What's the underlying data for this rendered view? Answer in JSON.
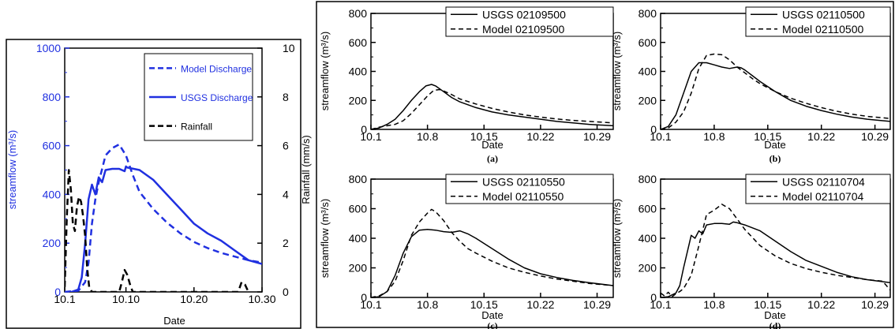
{
  "chart_data": [
    {
      "type": "line",
      "xlabel": "Date",
      "ylabel": "streamflow (m³/s)",
      "y2label": "Rainfall (mm/s)",
      "x_tick_labels": [
        "10.1",
        "10.10",
        "10.20",
        "10.30"
      ],
      "x_ticks": [
        1,
        10,
        20,
        30
      ],
      "xlim": [
        1,
        30
      ],
      "ylim": [
        0,
        1000
      ],
      "y_tick_labels": [
        "0",
        "200",
        "400",
        "600",
        "800",
        "1000"
      ],
      "y2lim": [
        0,
        10
      ],
      "y2_tick_labels": [
        "0",
        "2",
        "4",
        "6",
        "8",
        "10"
      ],
      "legend_position": "top-right",
      "series": [
        {
          "name": "Model Discharge",
          "color": "#2030e0",
          "style": "dashed",
          "axis": "left",
          "x": [
            1,
            3,
            4,
            4.5,
            5,
            5.5,
            6,
            7,
            8,
            9,
            10,
            11,
            12,
            14,
            16,
            18,
            20,
            22,
            24,
            26,
            28,
            30
          ],
          "y": [
            0,
            5,
            40,
            120,
            280,
            380,
            450,
            560,
            590,
            605,
            560,
            480,
            410,
            340,
            285,
            240,
            205,
            180,
            160,
            145,
            130,
            120
          ]
        },
        {
          "name": "USGS Discharge",
          "color": "#2030e0",
          "style": "solid",
          "axis": "left",
          "x": [
            1,
            2,
            3,
            3.5,
            4,
            4.5,
            5,
            5.5,
            6,
            6.5,
            7,
            8,
            9,
            9.8,
            10,
            10.2,
            12,
            14,
            16,
            18,
            20,
            22,
            24,
            26,
            28,
            30
          ],
          "y": [
            0,
            0,
            10,
            60,
            200,
            380,
            440,
            400,
            470,
            450,
            500,
            505,
            505,
            495,
            515,
            510,
            500,
            460,
            400,
            340,
            280,
            240,
            210,
            170,
            130,
            115
          ]
        },
        {
          "name": "Rainfall",
          "color": "#000000",
          "style": "dashed",
          "axis": "right",
          "x": [
            1,
            1.3,
            1.6,
            1.9,
            2.2,
            2.5,
            2.8,
            3.1,
            3.4,
            3.7,
            4.0,
            4.3,
            4.6,
            5,
            9,
            9.4,
            9.8,
            10.2,
            10.6,
            11,
            26.5,
            27,
            27.5,
            28
          ],
          "y": [
            0.2,
            3.0,
            5.0,
            4.2,
            2.8,
            2.5,
            3.5,
            3.9,
            3.7,
            3.1,
            2.3,
            1.0,
            0.2,
            0,
            0,
            0.4,
            0.9,
            0.7,
            0.3,
            0,
            0,
            0.4,
            0.3,
            0
          ]
        }
      ]
    },
    {
      "type": "line",
      "caption": "(a)",
      "xlabel": "Date",
      "ylabel": "streamflow (m³/s)",
      "x_tick_labels": [
        "10.1",
        "10.8",
        "10.15",
        "10.22",
        "10.29"
      ],
      "x_ticks": [
        1,
        8,
        15,
        22,
        29
      ],
      "xlim": [
        1,
        31
      ],
      "ylim": [
        0,
        800
      ],
      "y_tick_labels": [
        "0",
        "200",
        "400",
        "600",
        "800"
      ],
      "legend_position": "top-right",
      "series": [
        {
          "name": "USGS 02109500",
          "style": "solid",
          "x": [
            1,
            2,
            3,
            4,
            5,
            6,
            7,
            7.8,
            8.5,
            9,
            10,
            11,
            12,
            14,
            16,
            18,
            20,
            22,
            24,
            26,
            28,
            31
          ],
          "y": [
            0,
            10,
            35,
            70,
            130,
            200,
            260,
            300,
            310,
            300,
            260,
            220,
            190,
            150,
            120,
            100,
            85,
            70,
            55,
            45,
            35,
            25
          ]
        },
        {
          "name": "Model 02109500",
          "style": "dashed",
          "x": [
            1,
            2,
            3,
            4,
            5,
            6,
            7,
            8,
            8.8,
            9.5,
            10,
            11,
            12,
            14,
            16,
            18,
            20,
            22,
            24,
            26,
            28,
            31
          ],
          "y": [
            0,
            15,
            25,
            35,
            60,
            110,
            170,
            230,
            270,
            275,
            265,
            240,
            210,
            175,
            145,
            120,
            100,
            85,
            72,
            62,
            55,
            45
          ]
        }
      ]
    },
    {
      "type": "line",
      "caption": "(b)",
      "xlabel": "Date",
      "ylabel": "streamflow (m³/s)",
      "x_tick_labels": [
        "10.1",
        "10.8",
        "10.15",
        "10.22",
        "10.29"
      ],
      "x_ticks": [
        1,
        8,
        15,
        22,
        29
      ],
      "xlim": [
        1,
        31
      ],
      "ylim": [
        0,
        800
      ],
      "y_tick_labels": [
        "0",
        "200",
        "400",
        "600",
        "800"
      ],
      "legend_position": "top-right",
      "series": [
        {
          "name": "USGS 02110500",
          "style": "solid",
          "x": [
            1,
            2,
            3,
            4,
            5,
            6,
            7,
            8,
            9,
            10,
            11,
            11.5,
            12,
            13,
            14,
            16,
            18,
            20,
            22,
            24,
            26,
            28,
            31
          ],
          "y": [
            0,
            20,
            100,
            250,
            400,
            460,
            460,
            445,
            430,
            420,
            430,
            425,
            410,
            370,
            330,
            260,
            200,
            160,
            130,
            105,
            85,
            70,
            55
          ]
        },
        {
          "name": "Model 02110500",
          "style": "dashed",
          "x": [
            1,
            2,
            3,
            4,
            5,
            6,
            7,
            8,
            9,
            10,
            11,
            12,
            13,
            14,
            16,
            18,
            20,
            22,
            24,
            26,
            28,
            31
          ],
          "y": [
            0,
            10,
            50,
            120,
            250,
            420,
            510,
            520,
            515,
            480,
            430,
            390,
            350,
            315,
            260,
            215,
            180,
            150,
            125,
            105,
            90,
            75
          ]
        }
      ]
    },
    {
      "type": "line",
      "caption": "(c)",
      "xlabel": "Date",
      "ylabel": "streamflow (m³/s)",
      "x_tick_labels": [
        "10.1",
        "10.8",
        "10.15",
        "10.22",
        "10.29"
      ],
      "x_ticks": [
        1,
        8,
        15,
        22,
        29
      ],
      "xlim": [
        1,
        31
      ],
      "ylim": [
        0,
        800
      ],
      "y_tick_labels": [
        "0",
        "200",
        "400",
        "600",
        "800"
      ],
      "legend_position": "top-right",
      "series": [
        {
          "name": "USGS 02110550",
          "style": "solid",
          "x": [
            1,
            2,
            3,
            4,
            5,
            6,
            7,
            8,
            9,
            10,
            11,
            12,
            13,
            14,
            16,
            18,
            20,
            22,
            24,
            26,
            28,
            31
          ],
          "y": [
            0,
            5,
            40,
            150,
            300,
            410,
            455,
            460,
            455,
            445,
            440,
            450,
            430,
            400,
            330,
            260,
            200,
            160,
            135,
            115,
            100,
            80
          ]
        },
        {
          "name": "Model 02110550",
          "style": "dashed",
          "x": [
            1,
            2,
            3,
            4,
            5,
            6,
            7,
            8,
            8.5,
            9,
            10,
            11,
            12,
            13,
            14,
            16,
            18,
            20,
            22,
            24,
            26,
            28,
            31
          ],
          "y": [
            0,
            10,
            40,
            110,
            250,
            420,
            510,
            570,
            595,
            580,
            520,
            440,
            380,
            330,
            300,
            245,
            200,
            170,
            145,
            125,
            110,
            95,
            80
          ]
        }
      ]
    },
    {
      "type": "line",
      "caption": "(d)",
      "xlabel": "Date",
      "ylabel": "streamflow (m³/s)",
      "x_tick_labels": [
        "10.1",
        "10.8",
        "10.15",
        "10.22",
        "10.29"
      ],
      "x_ticks": [
        1,
        8,
        15,
        22,
        29
      ],
      "xlim": [
        1,
        31
      ],
      "ylim": [
        0,
        800
      ],
      "y_tick_labels": [
        "0",
        "200",
        "400",
        "600",
        "800"
      ],
      "legend_position": "top-right",
      "series": [
        {
          "name": "USGS 02110704",
          "style": "solid",
          "x": [
            1,
            2,
            3,
            3.5,
            4,
            5,
            5.5,
            6,
            6.5,
            7,
            8,
            9,
            10,
            10.5,
            11,
            12,
            14,
            16,
            18,
            20,
            22,
            24,
            26,
            28,
            31
          ],
          "y": [
            0,
            5,
            30,
            80,
            200,
            420,
            400,
            450,
            430,
            490,
            500,
            500,
            495,
            510,
            505,
            490,
            450,
            380,
            310,
            250,
            210,
            170,
            140,
            120,
            100
          ]
        },
        {
          "name": "Model 02110704",
          "style": "dashed",
          "x": [
            1,
            1.5,
            2,
            2.5,
            3,
            3.5,
            4,
            5,
            6,
            7,
            8,
            9,
            10,
            11,
            12,
            14,
            16,
            18,
            20,
            22,
            24,
            26,
            28,
            30,
            31
          ],
          "y": [
            30,
            10,
            35,
            5,
            25,
            40,
            60,
            150,
            350,
            560,
            590,
            630,
            600,
            530,
            460,
            350,
            280,
            230,
            195,
            170,
            150,
            135,
            120,
            110,
            50
          ]
        }
      ]
    }
  ]
}
